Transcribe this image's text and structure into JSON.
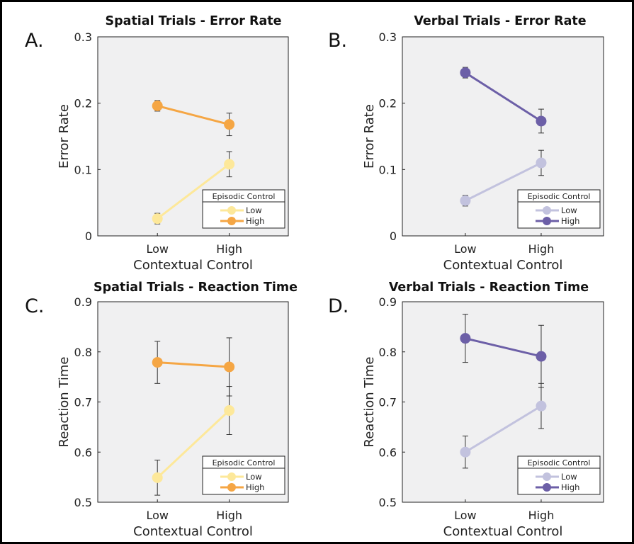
{
  "chart_data": [
    {
      "type": "line",
      "panel_letter": "A.",
      "title": "Spatial Trials - Error Rate",
      "xlabel": "Contextual Control",
      "ylabel": "Error Rate",
      "categories": [
        "Low",
        "High"
      ],
      "ylim": [
        0,
        0.3
      ],
      "yticks": [
        "0",
        "0.1",
        "0.2",
        "0.3"
      ],
      "grid": false,
      "legend": {
        "title": "Episodic Control",
        "position": "bottom-right"
      },
      "series": [
        {
          "name": "Low",
          "color": "#fde89a",
          "values": [
            0.026,
            0.108
          ],
          "error": [
            0.008,
            0.019
          ]
        },
        {
          "name": "High",
          "color": "#f5a644",
          "values": [
            0.196,
            0.168
          ],
          "error": [
            0.008,
            0.017
          ]
        }
      ]
    },
    {
      "type": "line",
      "panel_letter": "B.",
      "title": "Verbal Trials - Error Rate",
      "xlabel": "Contextual Control",
      "ylabel": "Error Rate",
      "categories": [
        "Low",
        "High"
      ],
      "ylim": [
        0,
        0.3
      ],
      "yticks": [
        "0",
        "0.1",
        "0.2",
        "0.3"
      ],
      "grid": false,
      "legend": {
        "title": "Episodic Control",
        "position": "bottom-right"
      },
      "series": [
        {
          "name": "Low",
          "color": "#c2c2de",
          "values": [
            0.053,
            0.11
          ],
          "error": [
            0.008,
            0.019
          ]
        },
        {
          "name": "High",
          "color": "#6c5fa7",
          "values": [
            0.246,
            0.173
          ],
          "error": [
            0.008,
            0.018
          ]
        }
      ]
    },
    {
      "type": "line",
      "panel_letter": "C.",
      "title": "Spatial Trials - Reaction Time",
      "xlabel": "Contextual Control",
      "ylabel": "Reaction Time",
      "categories": [
        "Low",
        "High"
      ],
      "ylim": [
        0.5,
        0.9
      ],
      "yticks": [
        "0.5",
        "0.6",
        "0.7",
        "0.8",
        "0.9"
      ],
      "grid": false,
      "legend": {
        "title": "Episodic Control",
        "position": "bottom-right"
      },
      "series": [
        {
          "name": "Low",
          "color": "#fde89a",
          "values": [
            0.549,
            0.683
          ],
          "error": [
            0.035,
            0.048
          ]
        },
        {
          "name": "High",
          "color": "#f5a644",
          "values": [
            0.779,
            0.77
          ],
          "error": [
            0.042,
            0.058
          ]
        }
      ]
    },
    {
      "type": "line",
      "panel_letter": "D.",
      "title": "Verbal Trials - Reaction Time",
      "xlabel": "Contextual Control",
      "ylabel": "Reaction Time",
      "categories": [
        "Low",
        "High"
      ],
      "ylim": [
        0.5,
        0.9
      ],
      "yticks": [
        "0.5",
        "0.6",
        "0.7",
        "0.8",
        "0.9"
      ],
      "grid": false,
      "legend": {
        "title": "Episodic Control",
        "position": "bottom-right"
      },
      "series": [
        {
          "name": "Low",
          "color": "#c2c2de",
          "values": [
            0.6,
            0.692
          ],
          "error": [
            0.032,
            0.045
          ]
        },
        {
          "name": "High",
          "color": "#6c5fa7",
          "values": [
            0.827,
            0.791
          ],
          "error": [
            0.048,
            0.062
          ]
        }
      ]
    }
  ]
}
